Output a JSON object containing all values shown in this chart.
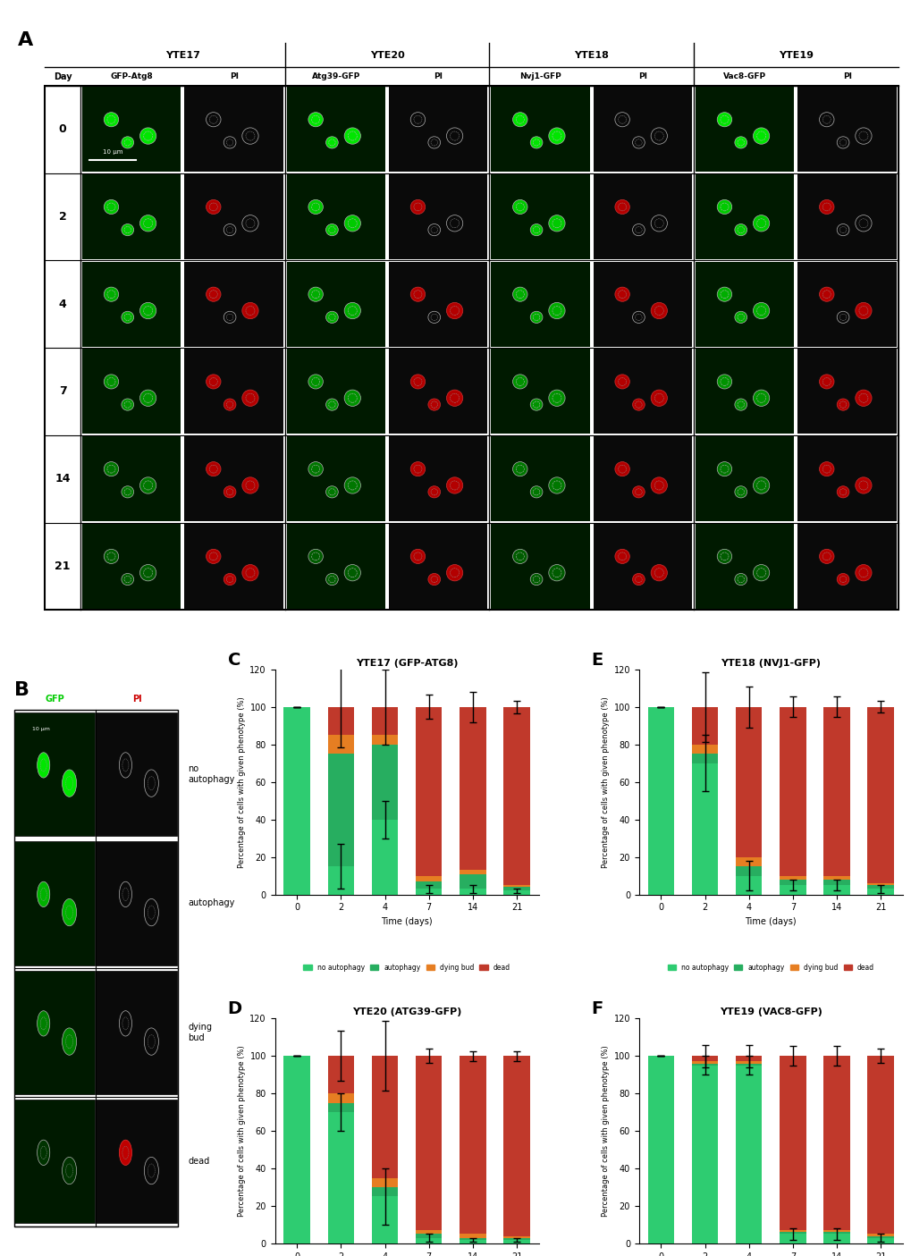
{
  "panel_A_days": [
    0,
    2,
    4,
    7,
    14,
    21
  ],
  "panel_A_strains": [
    "YTE17",
    "YTE20",
    "YTE18",
    "YTE19"
  ],
  "panel_A_channels": [
    "GFP-Atg8",
    "PI",
    "Atg39-GFP",
    "PI",
    "Nvj1-GFP",
    "PI",
    "Vac8-GFP",
    "PI"
  ],
  "chart_C_title": "YTE17 (GFP-ATG8)",
  "chart_D_title": "YTE20 (ATG39-GFP)",
  "chart_E_title": "YTE18 (NVJ1-GFP)",
  "chart_F_title": "YTE19 (VAC8-GFP)",
  "time_points": [
    0,
    2,
    4,
    7,
    14,
    21
  ],
  "C_no_autophagy": [
    100,
    15,
    40,
    3,
    3,
    2
  ],
  "C_autophagy": [
    0,
    60,
    40,
    4,
    8,
    2
  ],
  "C_dying_bud": [
    0,
    10,
    5,
    3,
    2,
    1
  ],
  "C_dead": [
    0,
    15,
    15,
    90,
    87,
    95
  ],
  "C_no_autophagy_err": [
    0,
    12,
    10,
    2,
    2,
    1
  ],
  "C_autophagy_err": [
    0,
    15,
    15,
    3,
    6,
    1
  ],
  "C_dying_bud_err": [
    0,
    5,
    3,
    2,
    1,
    1
  ],
  "C_dead_err": [
    0,
    8,
    8,
    5,
    5,
    3
  ],
  "D_no_autophagy": [
    100,
    70,
    25,
    3,
    2,
    2
  ],
  "D_autophagy": [
    0,
    5,
    5,
    2,
    1,
    1
  ],
  "D_dying_bud": [
    0,
    5,
    5,
    2,
    2,
    1
  ],
  "D_dead": [
    0,
    20,
    65,
    93,
    95,
    96
  ],
  "D_no_autophagy_err": [
    0,
    10,
    15,
    2,
    1,
    1
  ],
  "D_autophagy_err": [
    0,
    3,
    3,
    1,
    1,
    1
  ],
  "D_dying_bud_err": [
    0,
    3,
    3,
    1,
    1,
    1
  ],
  "D_dead_err": [
    0,
    8,
    10,
    3,
    2,
    2
  ],
  "E_no_autophagy": [
    100,
    70,
    10,
    5,
    5,
    3
  ],
  "E_autophagy": [
    0,
    5,
    5,
    3,
    3,
    2
  ],
  "E_dying_bud": [
    0,
    5,
    5,
    2,
    2,
    1
  ],
  "E_dead": [
    0,
    20,
    80,
    90,
    90,
    94
  ],
  "E_no_autophagy_err": [
    0,
    15,
    8,
    3,
    3,
    2
  ],
  "E_autophagy_err": [
    0,
    3,
    3,
    2,
    2,
    1
  ],
  "E_dying_bud_err": [
    0,
    3,
    3,
    1,
    1,
    1
  ],
  "E_dead_err": [
    0,
    10,
    6,
    4,
    4,
    2
  ],
  "F_no_autophagy": [
    100,
    95,
    95,
    5,
    5,
    3
  ],
  "F_autophagy": [
    0,
    1,
    1,
    1,
    1,
    1
  ],
  "F_dying_bud": [
    0,
    1,
    1,
    1,
    1,
    1
  ],
  "F_dead": [
    0,
    3,
    3,
    93,
    93,
    95
  ],
  "F_no_autophagy_err": [
    0,
    5,
    5,
    3,
    3,
    2
  ],
  "F_autophagy_err": [
    0,
    1,
    1,
    1,
    1,
    1
  ],
  "F_dying_bud_err": [
    0,
    1,
    1,
    1,
    1,
    1
  ],
  "F_dead_err": [
    0,
    3,
    3,
    4,
    4,
    3
  ],
  "color_no_autophagy": "#2ecc71",
  "color_autophagy": "#27ae60",
  "color_dying_bud": "#e67e22",
  "color_dead": "#c0392b",
  "color_black_bg": "#000000",
  "color_dark_green": "#006400",
  "color_green_cell": "#00cc00",
  "color_red_cell": "#cc0000",
  "ylabel": "Percentage of cells with given phenotype (%)",
  "xlabel": "Time (days)",
  "ylim": [
    0,
    120
  ],
  "yticks": [
    0,
    20,
    40,
    60,
    80,
    100,
    120
  ],
  "legend_labels": [
    "no autophagy",
    "autophagy",
    "dying bud",
    "dead"
  ]
}
